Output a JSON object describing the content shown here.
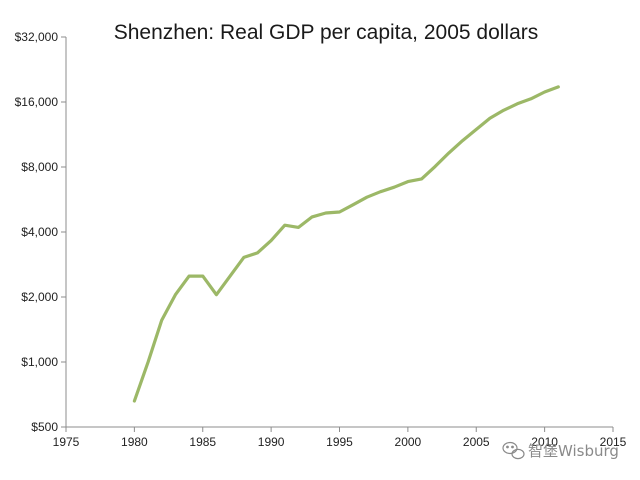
{
  "chart_data": {
    "type": "line",
    "title": "Shenzhen: Real GDP per capita, 2005 dollars",
    "xlabel": "",
    "ylabel": "",
    "y_scale": "log2",
    "xlim": [
      1975,
      2015
    ],
    "ylim": [
      500,
      32000
    ],
    "x_ticks": [
      "1975",
      "1980",
      "1985",
      "1990",
      "1995",
      "2000",
      "2005",
      "2010",
      "2015"
    ],
    "y_ticks": [
      "$500",
      "$1,000",
      "$2,000",
      "$4,000",
      "$8,000",
      "$16,000",
      "$32,000"
    ],
    "grid": false,
    "series": [
      {
        "color": "#9cb867",
        "x": [
          1980,
          1981,
          1982,
          1983,
          1984,
          1985,
          1986,
          1987,
          1988,
          1989,
          1990,
          1991,
          1992,
          1993,
          1994,
          1995,
          1996,
          1997,
          1998,
          1999,
          2000,
          2001,
          2002,
          2003,
          2004,
          2005,
          2006,
          2007,
          2008,
          2009,
          2010,
          2011
        ],
        "y": [
          660,
          1000,
          1560,
          2050,
          2500,
          2500,
          2050,
          2500,
          3050,
          3200,
          3650,
          4300,
          4200,
          4700,
          4900,
          4950,
          5350,
          5800,
          6150,
          6450,
          6850,
          7050,
          8050,
          9300,
          10600,
          11950,
          13450,
          14650,
          15700,
          16550,
          17800,
          18800
        ]
      }
    ]
  },
  "watermark": {
    "text": "智堡Wisburg",
    "icon": "wechat-icon"
  }
}
